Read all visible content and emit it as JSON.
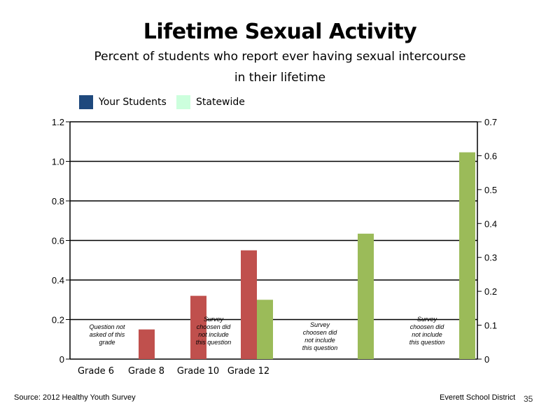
{
  "slide": {
    "title": "Lifetime Sexual Activity",
    "subtitle_line1": "Percent of students who report ever having sexual intercourse",
    "subtitle_line2": "in their lifetime",
    "source": "Source: 2012 Healthy Youth Survey",
    "district": "Everett School District",
    "page_number": "35"
  },
  "legend": [
    {
      "label": "Your Students",
      "color": "#1f497d"
    },
    {
      "label": "Statewide",
      "color": "#ccffdd"
    }
  ],
  "chart_data": {
    "type": "bar",
    "categories": [
      "Grade 6",
      "Grade 8",
      "Grade 10",
      "Grade 12"
    ],
    "left_axis": {
      "ticks": [
        "0",
        "0.2",
        "0.4",
        "0.6",
        "0.8",
        "1.0",
        "1.2"
      ],
      "ylim": [
        0,
        1.2
      ]
    },
    "right_axis": {
      "ticks": [
        "0",
        "0.1",
        "0.2",
        "0.3",
        "0.4",
        "0.5",
        "0.6",
        "0.7"
      ],
      "ylim": [
        0,
        0.7
      ]
    },
    "grid": true,
    "series": [
      {
        "color": "#c0504d",
        "axis": "left",
        "values": [
          null,
          0.15,
          0.32,
          0.55
        ]
      },
      {
        "color": "#9bbb59",
        "axis": "left",
        "values": [
          null,
          null,
          null,
          0.3
        ]
      },
      {
        "color": "#9bbb59",
        "axis": "right",
        "group_values": [
          0.37,
          0.61
        ]
      }
    ],
    "annotations": [
      {
        "lines": [
          "Question not",
          "asked of this",
          "grade"
        ]
      },
      {
        "lines": [
          "Survey",
          "choosen did",
          "not include",
          "this question"
        ]
      },
      {
        "lines": [
          "Survey",
          "choosen did",
          "not include",
          "this question"
        ]
      },
      {
        "lines": [
          "Survey",
          "choosen did",
          "not include",
          "this question"
        ]
      }
    ]
  }
}
